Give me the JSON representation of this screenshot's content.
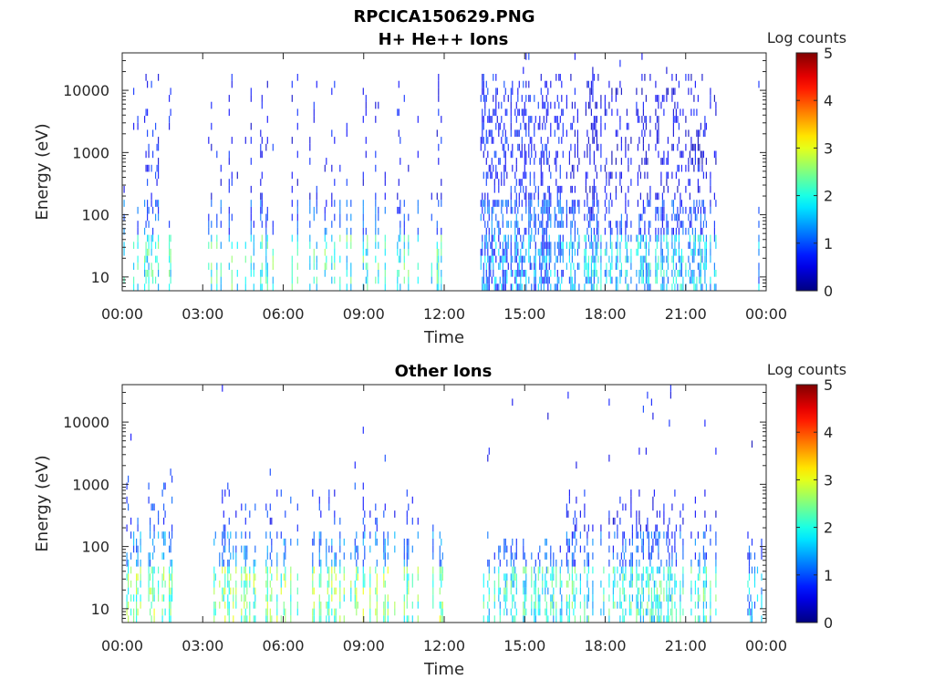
{
  "figure": {
    "title_line1": "RPCICA150629.PNG"
  },
  "chart_data": [
    {
      "type": "heatmap",
      "title": "H+ He++ Ions",
      "xlabel": "Time",
      "ylabel": "Energy (eV)",
      "x_ticks": [
        "00:00",
        "03:00",
        "06:00",
        "09:00",
        "12:00",
        "15:00",
        "18:00",
        "21:00",
        "00:00"
      ],
      "x_range_hours": [
        0,
        24
      ],
      "y_scale": "log",
      "y_range_eV": [
        6,
        40000
      ],
      "y_ticks": [
        10,
        100,
        1000,
        10000
      ],
      "y_tick_labels": [
        "10",
        "100",
        "1000",
        "10000"
      ],
      "colorbar": {
        "label": "Log counts",
        "range": [
          0,
          5
        ],
        "ticks": [
          "0",
          "1",
          "2",
          "3",
          "4",
          "5"
        ],
        "colormap": "jet"
      },
      "data_segments": [
        {
          "start_h": 0.0,
          "end_h": 1.85,
          "density": 0.35,
          "e_top_eV": 16000,
          "level_low": 2.0,
          "level_mid": 0.7
        },
        {
          "start_h": 3.15,
          "end_h": 11.95,
          "density": 0.3,
          "e_top_eV": 14000,
          "level_low": 2.0,
          "level_mid": 0.6
        },
        {
          "start_h": 13.35,
          "end_h": 16.45,
          "density": 0.9,
          "e_top_eV": 16000,
          "level_low": 1.2,
          "level_mid": 0.7
        },
        {
          "start_h": 16.55,
          "end_h": 22.2,
          "density": 0.65,
          "e_top_eV": 15000,
          "level_low": 1.6,
          "level_mid": 0.5
        },
        {
          "start_h": 23.3,
          "end_h": 23.9,
          "density": 0.4,
          "e_top_eV": 12000,
          "level_low": 1.3,
          "level_mid": 0.5
        }
      ]
    },
    {
      "type": "heatmap",
      "title": "Other Ions",
      "xlabel": "Time",
      "ylabel": "Energy (eV)",
      "x_ticks": [
        "00:00",
        "03:00",
        "06:00",
        "09:00",
        "12:00",
        "15:00",
        "18:00",
        "21:00",
        "00:00"
      ],
      "x_range_hours": [
        0,
        24
      ],
      "y_scale": "log",
      "y_range_eV": [
        6,
        40000
      ],
      "y_ticks": [
        10,
        100,
        1000,
        10000
      ],
      "y_tick_labels": [
        "10",
        "100",
        "1000",
        "10000"
      ],
      "colorbar": {
        "label": "Log counts",
        "range": [
          0,
          5
        ],
        "ticks": [
          "0",
          "1",
          "2",
          "3",
          "4",
          "5"
        ],
        "colormap": "jet"
      },
      "data_segments": [
        {
          "start_h": 0.0,
          "end_h": 1.85,
          "density": 0.35,
          "e_top_eV": 1200,
          "level_low": 2.4,
          "level_mid": 0.9
        },
        {
          "start_h": 3.15,
          "end_h": 11.95,
          "density": 0.3,
          "e_top_eV": 900,
          "level_low": 2.4,
          "level_mid": 0.8
        },
        {
          "start_h": 13.35,
          "end_h": 16.45,
          "density": 0.6,
          "e_top_eV": 130,
          "level_low": 1.9,
          "level_mid": 0.6
        },
        {
          "start_h": 16.55,
          "end_h": 22.2,
          "density": 0.55,
          "e_top_eV": 600,
          "level_low": 2.0,
          "level_mid": 0.6
        },
        {
          "start_h": 23.3,
          "end_h": 23.9,
          "density": 0.3,
          "e_top_eV": 150,
          "level_low": 1.5,
          "level_mid": 0.5
        }
      ]
    }
  ]
}
